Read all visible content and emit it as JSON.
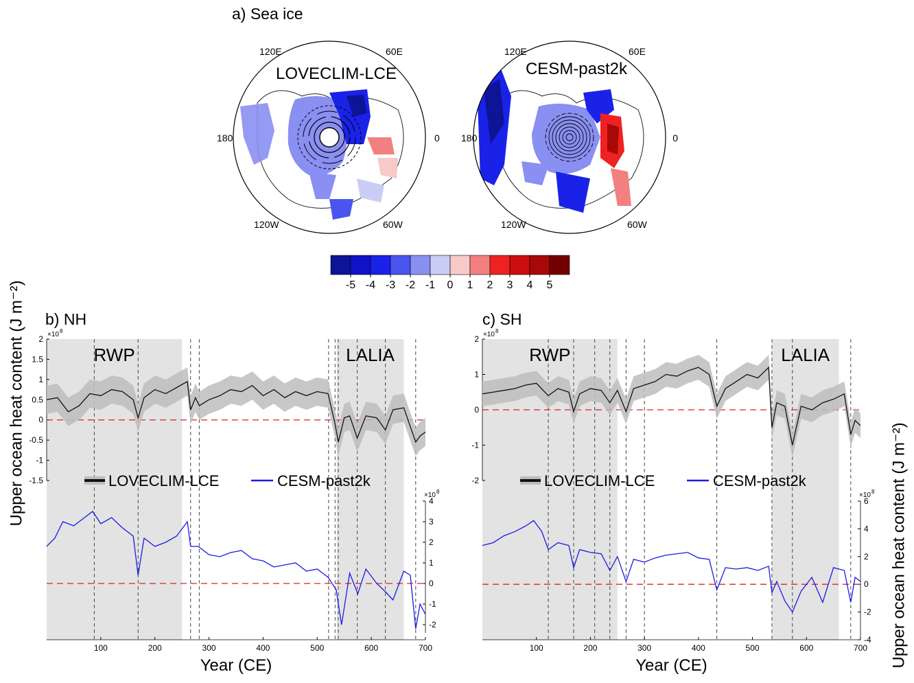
{
  "panel_a": {
    "title": "a) Sea ice",
    "maps": [
      {
        "name": "LOVECLIM-LCE",
        "lon_labels": [
          "120E",
          "60E",
          "180",
          "0",
          "120W",
          "60W"
        ]
      },
      {
        "name": "CESM-past2k",
        "lon_labels": [
          "120E",
          "60E",
          "180",
          "0",
          "120W",
          "60W"
        ]
      }
    ],
    "colorbar": {
      "ticks": [
        "-5",
        "-4",
        "-3",
        "-2",
        "-1",
        "0",
        "1",
        "2",
        "3",
        "4",
        "5"
      ],
      "colors": [
        "#0d1496",
        "#1111c8",
        "#1a22e8",
        "#4a55f0",
        "#8a8ff2",
        "#c9cdf6",
        "#f7c9c9",
        "#f28080",
        "#ee2222",
        "#cc0e0e",
        "#a80808",
        "#730000"
      ]
    }
  },
  "legend": {
    "series1": "LOVECLIM-LCE",
    "series2": "CESM-past2k"
  },
  "y_axis_label": "Upper ocean heat content (J m⁻²)",
  "colors": {
    "loveclim": "#111111",
    "loveclim_band": "#bdbdbd",
    "cesm": "#1a1ae6",
    "zero_line": "#e02020",
    "shade": "#e3e3e3"
  },
  "chart_data": [
    {
      "type": "line",
      "panel": "b) NH",
      "xlabel": "Year (CE)",
      "xlim": [
        0,
        700
      ],
      "x_ticks": [
        100,
        200,
        300,
        400,
        500,
        600,
        700
      ],
      "shaded_periods": [
        {
          "label": "RWP",
          "start": 0,
          "end": 250
        },
        {
          "label": "LALIA",
          "start": 536,
          "end": 660
        }
      ],
      "volcanic_events": [
        88,
        169,
        266,
        282,
        521,
        533,
        539,
        574,
        626,
        682
      ],
      "top_axis": {
        "ylim": [
          -1.5,
          2
        ],
        "ticks": [
          "2",
          "1.5",
          "1",
          "0.5",
          "0",
          "-0.5",
          "-1",
          "-1.5"
        ],
        "multiplier": "×10",
        "exponent": "8"
      },
      "bottom_axis": {
        "ylim": [
          -2.4,
          4
        ],
        "ticks": [
          "4",
          "3",
          "2",
          "1",
          "0",
          "-1",
          "-2"
        ],
        "multiplier": "×10",
        "exponent": "8"
      },
      "series": [
        {
          "name": "LOVECLIM-LCE",
          "x": [
            0,
            20,
            40,
            60,
            80,
            100,
            120,
            140,
            160,
            169,
            180,
            200,
            220,
            240,
            260,
            266,
            275,
            282,
            300,
            320,
            340,
            360,
            380,
            400,
            420,
            440,
            460,
            480,
            500,
            520,
            533,
            539,
            550,
            560,
            574,
            590,
            610,
            626,
            640,
            660,
            682,
            690,
            700
          ],
          "values": [
            0.5,
            0.55,
            0.2,
            0.35,
            0.65,
            0.6,
            0.75,
            0.7,
            0.5,
            0.05,
            0.55,
            0.75,
            0.65,
            0.8,
            0.95,
            0.25,
            0.55,
            0.35,
            0.5,
            0.6,
            0.75,
            0.7,
            0.85,
            0.6,
            0.75,
            0.55,
            0.7,
            0.6,
            0.7,
            0.65,
            -0.1,
            -0.55,
            0.05,
            0.1,
            -0.45,
            0.1,
            0.05,
            -0.25,
            0.25,
            0.3,
            -0.55,
            -0.4,
            -0.3
          ]
        },
        {
          "name": "CESM-past2k",
          "x": [
            0,
            15,
            30,
            50,
            70,
            85,
            100,
            120,
            140,
            160,
            169,
            180,
            200,
            220,
            240,
            260,
            266,
            280,
            300,
            320,
            340,
            360,
            380,
            400,
            420,
            440,
            460,
            480,
            500,
            520,
            535,
            545,
            560,
            575,
            590,
            610,
            626,
            640,
            660,
            672,
            682,
            690,
            700
          ],
          "values": [
            1.8,
            2.2,
            3.0,
            2.8,
            3.2,
            3.5,
            2.9,
            3.2,
            2.7,
            2.3,
            0.4,
            2.2,
            1.8,
            2.0,
            2.3,
            3.0,
            1.8,
            1.8,
            1.4,
            1.3,
            1.5,
            1.6,
            1.2,
            1.1,
            0.8,
            0.9,
            1.0,
            0.6,
            0.7,
            0.3,
            -0.3,
            -2.0,
            0.5,
            -0.5,
            0.7,
            0.0,
            -0.4,
            -0.8,
            0.6,
            0.4,
            -2.2,
            -1.0,
            -1.5
          ]
        }
      ]
    },
    {
      "type": "line",
      "panel": "c) SH",
      "xlabel": "Year (CE)",
      "xlim": [
        0,
        700
      ],
      "x_ticks": [
        100,
        200,
        300,
        400,
        500,
        600,
        700
      ],
      "shaded_periods": [
        {
          "label": "RWP",
          "start": 0,
          "end": 250
        },
        {
          "label": "LALIA",
          "start": 536,
          "end": 660
        }
      ],
      "volcanic_events": [
        122,
        169,
        208,
        236,
        266,
        300,
        434,
        536,
        574,
        682
      ],
      "top_axis": {
        "ylim": [
          -2,
          2
        ],
        "ticks": [
          "2",
          "1",
          "0",
          "-1",
          "-2"
        ],
        "multiplier": "×10",
        "exponent": "8"
      },
      "bottom_axis": {
        "ylim": [
          -4,
          6
        ],
        "ticks": [
          "6",
          "4",
          "2",
          "0",
          "-2",
          "-4"
        ],
        "multiplier": "×10",
        "exponent": "8"
      },
      "series": [
        {
          "name": "LOVECLIM-LCE",
          "x": [
            0,
            20,
            40,
            60,
            80,
            100,
            122,
            140,
            160,
            169,
            180,
            200,
            220,
            236,
            250,
            266,
            280,
            300,
            320,
            340,
            360,
            380,
            400,
            420,
            434,
            450,
            470,
            490,
            510,
            530,
            536,
            545,
            560,
            574,
            590,
            610,
            630,
            650,
            670,
            682,
            690,
            700
          ],
          "values": [
            0.45,
            0.5,
            0.55,
            0.6,
            0.7,
            0.75,
            0.4,
            0.6,
            0.5,
            -0.05,
            0.45,
            0.6,
            0.55,
            0.2,
            0.55,
            -0.05,
            0.6,
            0.7,
            0.8,
            1.0,
            0.95,
            1.1,
            1.2,
            1.0,
            0.1,
            0.6,
            0.8,
            1.0,
            0.9,
            1.2,
            -0.5,
            0.2,
            0.1,
            -1.0,
            0.1,
            0.0,
            0.2,
            0.3,
            0.45,
            -0.7,
            -0.3,
            -0.45
          ]
        },
        {
          "name": "CESM-past2k",
          "x": [
            0,
            20,
            40,
            60,
            80,
            95,
            110,
            122,
            140,
            160,
            169,
            180,
            200,
            220,
            236,
            250,
            266,
            280,
            300,
            320,
            340,
            360,
            380,
            400,
            420,
            434,
            450,
            470,
            490,
            510,
            530,
            536,
            545,
            560,
            574,
            590,
            610,
            630,
            650,
            670,
            682,
            690,
            700
          ],
          "values": [
            2.8,
            3.0,
            3.5,
            3.8,
            4.2,
            4.6,
            3.8,
            2.5,
            3.0,
            2.8,
            1.2,
            2.5,
            2.3,
            2.2,
            1.0,
            2.0,
            0.2,
            1.8,
            1.6,
            1.9,
            2.1,
            2.2,
            2.3,
            1.9,
            1.8,
            -0.4,
            1.2,
            1.1,
            1.2,
            1.0,
            1.3,
            -0.6,
            0.2,
            -1.2,
            -2.0,
            -0.5,
            0.5,
            -1.3,
            1.2,
            1.0,
            -1.3,
            0.5,
            0.2
          ]
        }
      ]
    }
  ]
}
